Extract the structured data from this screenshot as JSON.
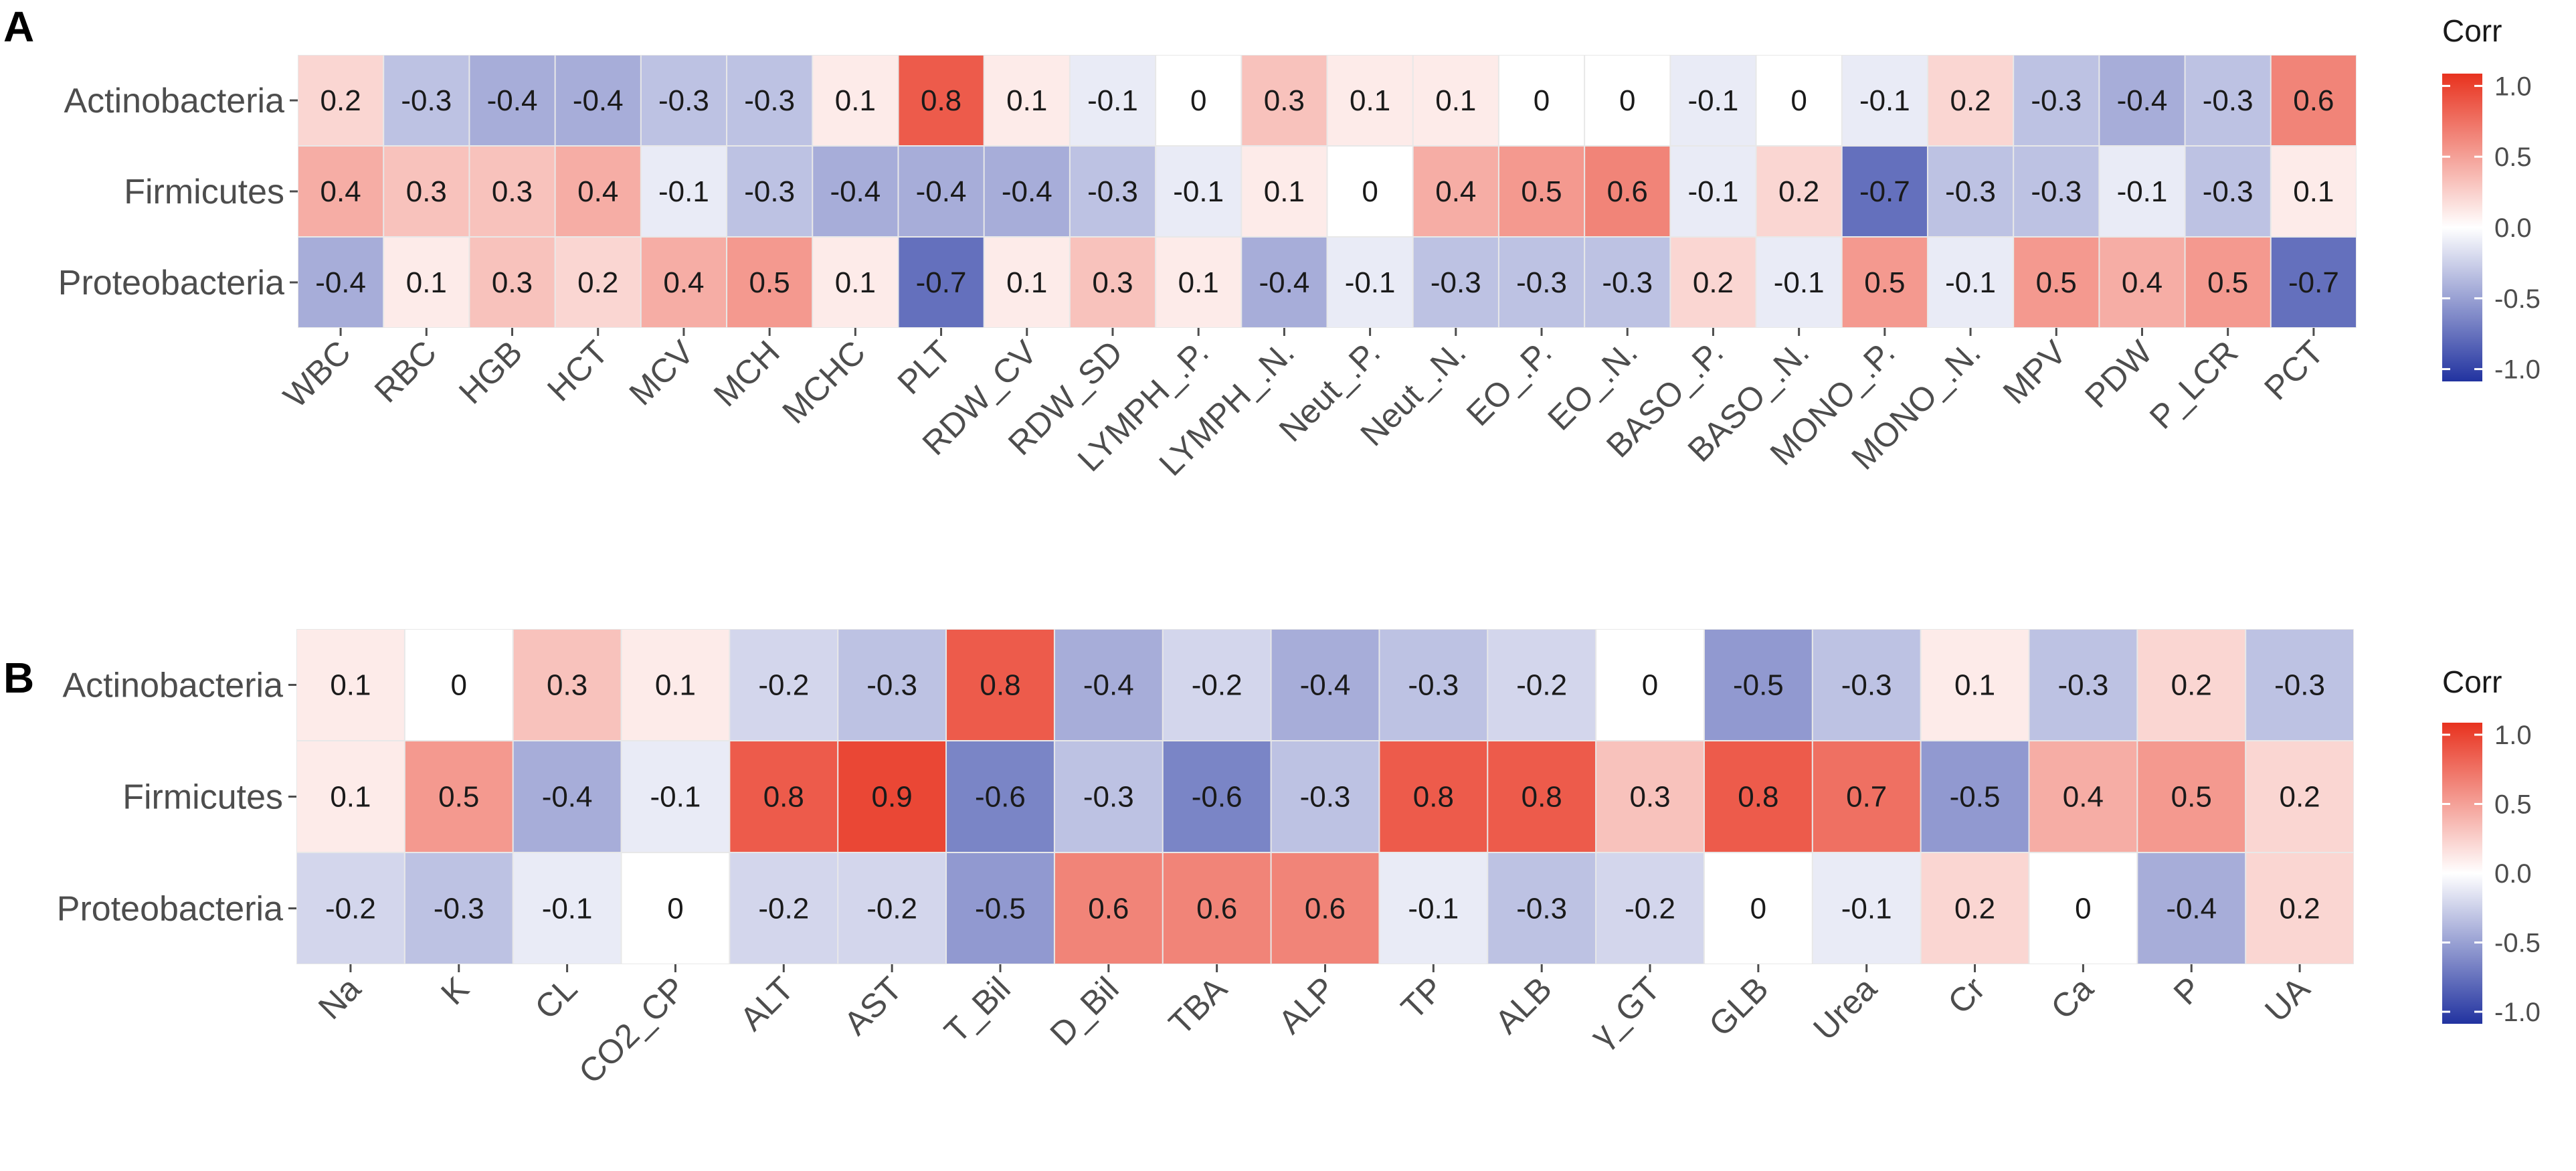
{
  "colors": {
    "negative": "#2233a0",
    "zero": "#ffffff",
    "positive": "#e8321e",
    "grid": "#e8e8e8"
  },
  "legend_ticks": [
    "1.0",
    "0.5",
    "0.0",
    "-0.5",
    "-1.0"
  ],
  "legend_range": [
    -1.0,
    1.0
  ],
  "chart_data": [
    {
      "type": "heatmap",
      "panel": "A",
      "legend_title": "Corr",
      "rows": [
        "Actinobacteria",
        "Firmicutes",
        "Proteobacteria"
      ],
      "columns": [
        "WBC",
        "RBC",
        "HGB",
        "HCT",
        "MCV",
        "MCH",
        "MCHC",
        "PLT",
        "RDW_CV",
        "RDW_SD",
        "LYMPH_.P.",
        "LYMPH_.N.",
        "Neut_.P.",
        "Neut_.N.",
        "EO_.P.",
        "EO_.N.",
        "BASO_.P.",
        "BASO_.N.",
        "MONO_.P.",
        "MONO_.N.",
        "MPV",
        "PDW",
        "P_LCR",
        "PCT"
      ],
      "values": [
        [
          0.2,
          -0.3,
          -0.4,
          -0.4,
          -0.3,
          -0.3,
          0.1,
          0.8,
          0.1,
          -0.1,
          0,
          0.3,
          0.1,
          0.1,
          0,
          0,
          -0.1,
          0,
          -0.1,
          0.2,
          -0.3,
          -0.4,
          -0.3,
          0.6
        ],
        [
          0.4,
          0.3,
          0.3,
          0.4,
          -0.1,
          -0.3,
          -0.4,
          -0.4,
          -0.4,
          -0.3,
          -0.1,
          0.1,
          0,
          0.4,
          0.5,
          0.6,
          -0.1,
          0.2,
          -0.7,
          -0.3,
          -0.3,
          -0.1,
          -0.3,
          0.1
        ],
        [
          -0.4,
          0.1,
          0.3,
          0.2,
          0.4,
          0.5,
          0.1,
          -0.7,
          0.1,
          0.3,
          0.1,
          -0.4,
          -0.1,
          -0.3,
          -0.3,
          -0.3,
          0.2,
          -0.1,
          0.5,
          -0.1,
          0.5,
          0.4,
          0.5,
          -0.7
        ]
      ]
    },
    {
      "type": "heatmap",
      "panel": "B",
      "legend_title": "Corr",
      "rows": [
        "Actinobacteria",
        "Firmicutes",
        "Proteobacteria"
      ],
      "columns": [
        "Na",
        "K",
        "CL",
        "CO2_CP",
        "ALT",
        "AST",
        "T_Bil",
        "D_Bil",
        "TBA",
        "ALP",
        "TP",
        "ALB",
        "γ_GT",
        "GLB",
        "Urea",
        "Cr",
        "Ca",
        "P",
        "UA"
      ],
      "values": [
        [
          0.1,
          0,
          0.3,
          0.1,
          -0.2,
          -0.3,
          0.8,
          -0.4,
          -0.2,
          -0.4,
          -0.3,
          -0.2,
          0,
          -0.5,
          -0.3,
          0.1,
          -0.3,
          0.2,
          -0.3
        ],
        [
          0.1,
          0.5,
          -0.4,
          -0.1,
          0.8,
          0.9,
          -0.6,
          -0.3,
          -0.6,
          -0.3,
          0.8,
          0.8,
          0.3,
          0.8,
          0.7,
          -0.5,
          0.4,
          0.5,
          0.2
        ],
        [
          -0.2,
          -0.3,
          -0.1,
          0,
          -0.2,
          -0.2,
          -0.5,
          0.6,
          0.6,
          0.6,
          -0.1,
          -0.3,
          -0.2,
          0,
          -0.1,
          0.2,
          0,
          -0.4,
          0.2
        ]
      ]
    }
  ]
}
